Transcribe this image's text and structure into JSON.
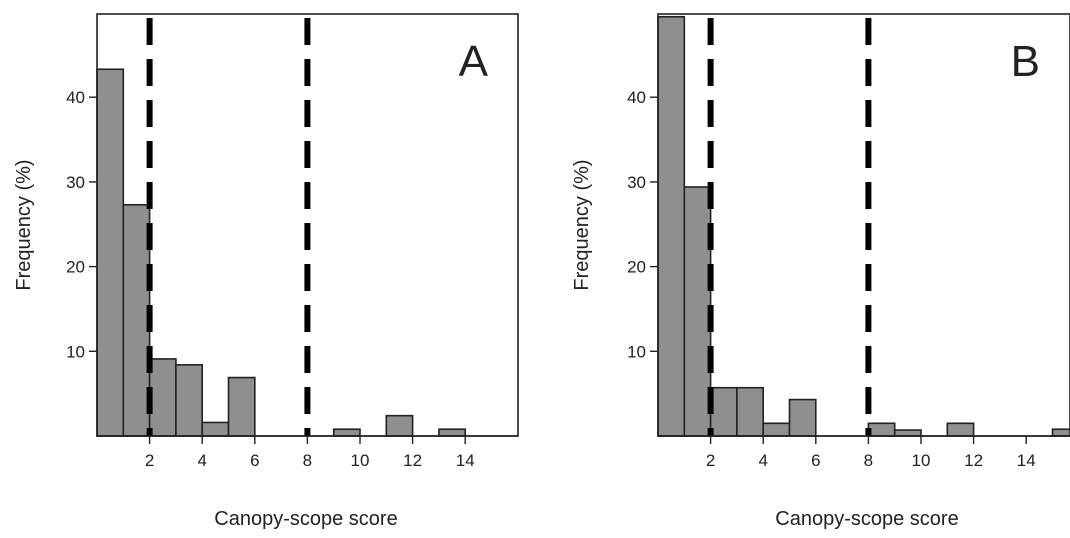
{
  "chart_data": [
    {
      "type": "bar",
      "panel_label": "A",
      "xlabel": "Canopy-scope score",
      "ylabel": "Frequency (%)",
      "x_ticks": [
        "2",
        "4",
        "6",
        "8",
        "10",
        "12",
        "14"
      ],
      "y_ticks": [
        "10",
        "20",
        "30",
        "40"
      ],
      "xlim": [
        0,
        16
      ],
      "ylim": [
        0,
        49.5
      ],
      "bins": [
        {
          "x0": 0,
          "x1": 1,
          "value": 43.3
        },
        {
          "x0": 1,
          "x1": 2,
          "value": 27.3
        },
        {
          "x0": 2,
          "x1": 3,
          "value": 9.1
        },
        {
          "x0": 3,
          "x1": 4,
          "value": 8.4
        },
        {
          "x0": 4,
          "x1": 5,
          "value": 1.6
        },
        {
          "x0": 5,
          "x1": 6,
          "value": 6.9
        },
        {
          "x0": 6,
          "x1": 7,
          "value": 0
        },
        {
          "x0": 7,
          "x1": 8,
          "value": 0
        },
        {
          "x0": 8,
          "x1": 9,
          "value": 0
        },
        {
          "x0": 9,
          "x1": 10,
          "value": 0.8
        },
        {
          "x0": 10,
          "x1": 11,
          "value": 0
        },
        {
          "x0": 11,
          "x1": 12,
          "value": 2.4
        },
        {
          "x0": 12,
          "x1": 13,
          "value": 0
        },
        {
          "x0": 13,
          "x1": 14,
          "value": 0.8
        },
        {
          "x0": 14,
          "x1": 15,
          "value": 0
        }
      ],
      "reference_lines": [
        2,
        8
      ],
      "bar_color": "#8f8f8f",
      "line_color": "#000000"
    },
    {
      "type": "bar",
      "panel_label": "B",
      "xlabel": "Canopy-scope score",
      "ylabel": "Frequency (%)",
      "x_ticks": [
        "2",
        "4",
        "6",
        "8",
        "10",
        "12",
        "14"
      ],
      "y_ticks": [
        "10",
        "20",
        "30",
        "40"
      ],
      "xlim": [
        0,
        16
      ],
      "ylim": [
        0,
        49.5
      ],
      "bins": [
        {
          "x0": 0,
          "x1": 1,
          "value": 49.5
        },
        {
          "x0": 1,
          "x1": 2,
          "value": 29.4
        },
        {
          "x0": 2,
          "x1": 3,
          "value": 5.7
        },
        {
          "x0": 3,
          "x1": 4,
          "value": 5.7
        },
        {
          "x0": 4,
          "x1": 5,
          "value": 1.5
        },
        {
          "x0": 5,
          "x1": 6,
          "value": 4.3
        },
        {
          "x0": 6,
          "x1": 7,
          "value": 0
        },
        {
          "x0": 7,
          "x1": 8,
          "value": 0
        },
        {
          "x0": 8,
          "x1": 9,
          "value": 1.5
        },
        {
          "x0": 9,
          "x1": 10,
          "value": 0.7
        },
        {
          "x0": 10,
          "x1": 11,
          "value": 0
        },
        {
          "x0": 11,
          "x1": 12,
          "value": 1.5
        },
        {
          "x0": 12,
          "x1": 13,
          "value": 0
        },
        {
          "x0": 13,
          "x1": 14,
          "value": 0
        },
        {
          "x0": 14,
          "x1": 15,
          "value": 0
        },
        {
          "x0": 15,
          "x1": 16,
          "value": 0.8
        }
      ],
      "reference_lines": [
        2,
        8
      ],
      "bar_color": "#8f8f8f",
      "line_color": "#000000"
    }
  ]
}
